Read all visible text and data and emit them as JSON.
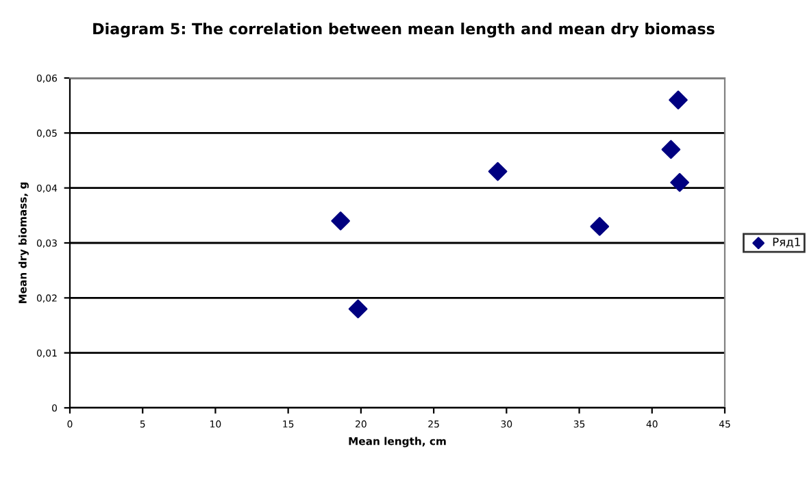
{
  "chart_data": {
    "type": "scatter",
    "title": "Diagram 5: The correlation between mean length and mean dry biomass",
    "xlabel": "Mean length, cm",
    "ylabel": "Mean dry biomass, g",
    "series": [
      {
        "name": "Ряд1",
        "color": "#000080",
        "x": [
          18.6,
          19.8,
          29.4,
          36.4,
          41.3,
          41.8,
          41.9
        ],
        "values": [
          0.034,
          0.018,
          0.043,
          0.033,
          0.047,
          0.056,
          0.041
        ]
      }
    ],
    "xlim": [
      0,
      45
    ],
    "xticks": [
      0,
      5,
      10,
      15,
      20,
      25,
      30,
      35,
      40,
      45
    ],
    "ylim": [
      0,
      0.06
    ],
    "yticks": [
      0,
      {
        "value": 0.01,
        "label": "0,01"
      },
      {
        "value": 0.02,
        "label": "0,02"
      },
      {
        "value": 0.03,
        "label": "0,03"
      },
      {
        "value": 0.04,
        "label": "0,04"
      },
      {
        "value": 0.05,
        "label": "0,05"
      },
      {
        "value": 0.06,
        "label": "0,06"
      }
    ],
    "grid": "y",
    "legend": "right",
    "marker": "diamond"
  }
}
